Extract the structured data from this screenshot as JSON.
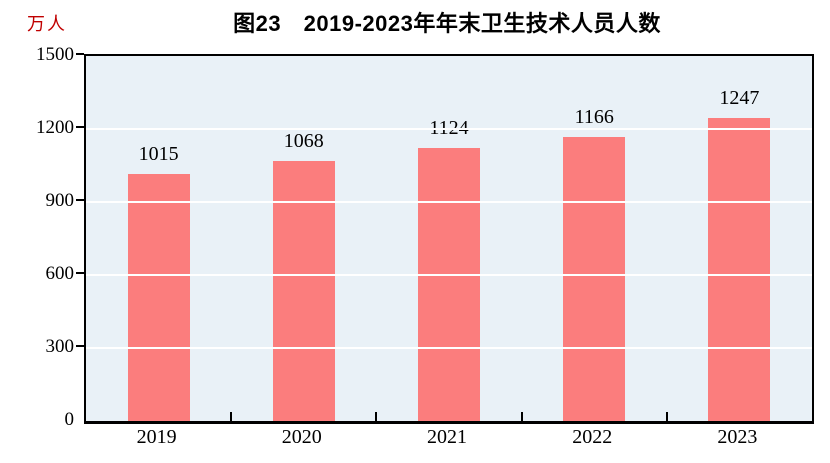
{
  "figure": {
    "title": "图23　2019-2023年年末卫生技术人员人数",
    "unit_label": "万人"
  },
  "chart_data": {
    "type": "bar",
    "title": "图23　2019-2023年年末卫生技术人员人数",
    "categories": [
      "2019",
      "2020",
      "2021",
      "2022",
      "2023"
    ],
    "values": [
      1015,
      1068,
      1124,
      1166,
      1247
    ],
    "data_labels": [
      1015,
      1068,
      1124,
      1166,
      1247
    ],
    "xlabel": "",
    "ylabel": "万人",
    "ylim": [
      0,
      1500
    ],
    "yticks": [
      0,
      300,
      600,
      900,
      1200,
      1500
    ],
    "grid": "horizontal",
    "legend_position": "none",
    "colors": {
      "bar": "#fb7d7d",
      "plot_background": "#e9f1f7",
      "gridline": "#ffffff",
      "axis_border": "#000000",
      "title_text": "#000000",
      "tick_text": "#000000",
      "unit_label_text": "#c00000"
    }
  }
}
